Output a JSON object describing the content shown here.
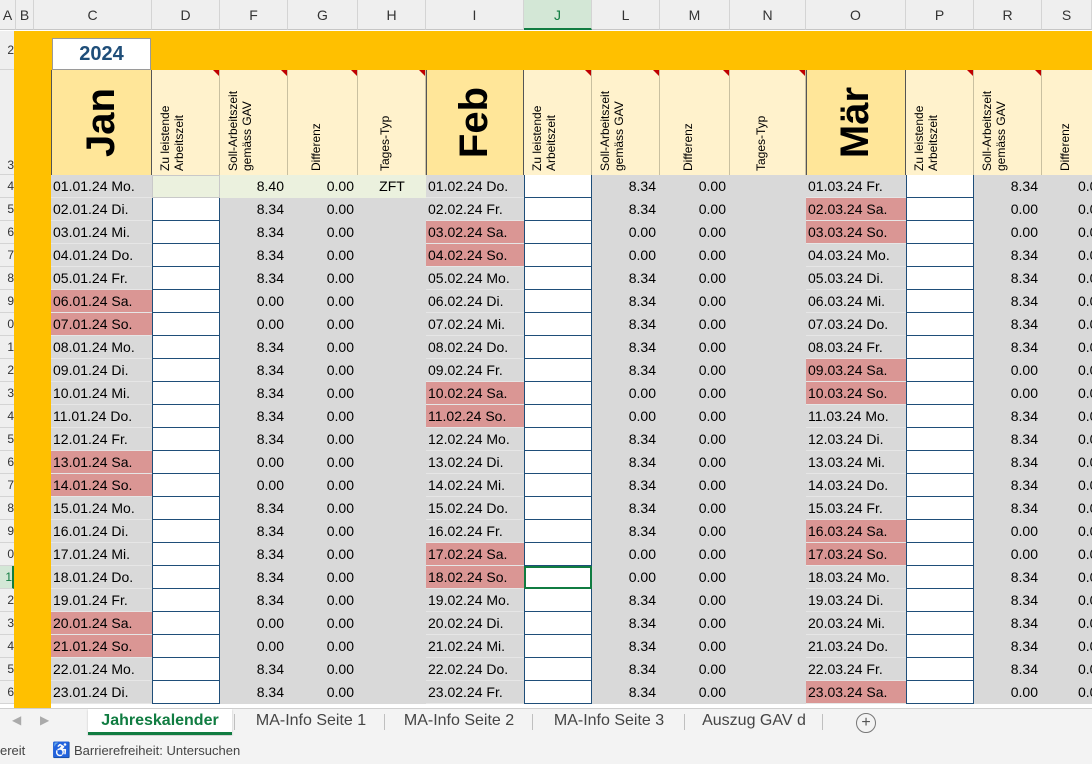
{
  "col_headers": [
    "A",
    "B",
    "C",
    "D",
    "F",
    "G",
    "H",
    "I",
    "J",
    "L",
    "M",
    "N",
    "O",
    "P",
    "R",
    "S"
  ],
  "row_numbers": [
    "2",
    "3",
    "4",
    "5",
    "6",
    "7",
    "8",
    "9",
    "0",
    "1",
    "2",
    "3",
    "4",
    "5",
    "6",
    "7",
    "8",
    "9",
    "0",
    "1",
    "2",
    "3",
    "4",
    "5",
    "6"
  ],
  "year": "2024",
  "months": [
    {
      "name": "Jan",
      "cols": [
        "Zu leistende\nArbeitszeit",
        "Soll-Arbeitszeit\ngemäss GAV",
        "Differenz",
        "Tages-Typ"
      ]
    },
    {
      "name": "Feb",
      "cols": [
        "Zu leistende\nArbeitszeit",
        "Soll-Arbeitszeit\ngemäss GAV",
        "Differenz",
        "Tages-Typ"
      ]
    },
    {
      "name": "Mär",
      "cols": [
        "Zu leistende\nArbeitszeit",
        "Soll-Arbeitszeit\ngemäss GAV",
        "Differenz"
      ]
    }
  ],
  "jan_rows": [
    {
      "d": "01.01.24 Mo.",
      "soll": "8.40",
      "diff": "0.00",
      "typ": "ZFT",
      "we": false
    },
    {
      "d": "02.01.24 Di.",
      "soll": "8.34",
      "diff": "0.00",
      "typ": "",
      "we": false
    },
    {
      "d": "03.01.24 Mi.",
      "soll": "8.34",
      "diff": "0.00",
      "typ": "",
      "we": false
    },
    {
      "d": "04.01.24 Do.",
      "soll": "8.34",
      "diff": "0.00",
      "typ": "",
      "we": false
    },
    {
      "d": "05.01.24 Fr.",
      "soll": "8.34",
      "diff": "0.00",
      "typ": "",
      "we": false
    },
    {
      "d": "06.01.24 Sa.",
      "soll": "0.00",
      "diff": "0.00",
      "typ": "",
      "we": true
    },
    {
      "d": "07.01.24 So.",
      "soll": "0.00",
      "diff": "0.00",
      "typ": "",
      "we": true
    },
    {
      "d": "08.01.24 Mo.",
      "soll": "8.34",
      "diff": "0.00",
      "typ": "",
      "we": false
    },
    {
      "d": "09.01.24 Di.",
      "soll": "8.34",
      "diff": "0.00",
      "typ": "",
      "we": false
    },
    {
      "d": "10.01.24 Mi.",
      "soll": "8.34",
      "diff": "0.00",
      "typ": "",
      "we": false
    },
    {
      "d": "11.01.24 Do.",
      "soll": "8.34",
      "diff": "0.00",
      "typ": "",
      "we": false
    },
    {
      "d": "12.01.24 Fr.",
      "soll": "8.34",
      "diff": "0.00",
      "typ": "",
      "we": false
    },
    {
      "d": "13.01.24 Sa.",
      "soll": "0.00",
      "diff": "0.00",
      "typ": "",
      "we": true
    },
    {
      "d": "14.01.24 So.",
      "soll": "0.00",
      "diff": "0.00",
      "typ": "",
      "we": true
    },
    {
      "d": "15.01.24 Mo.",
      "soll": "8.34",
      "diff": "0.00",
      "typ": "",
      "we": false
    },
    {
      "d": "16.01.24 Di.",
      "soll": "8.34",
      "diff": "0.00",
      "typ": "",
      "we": false
    },
    {
      "d": "17.01.24 Mi.",
      "soll": "8.34",
      "diff": "0.00",
      "typ": "",
      "we": false
    },
    {
      "d": "18.01.24 Do.",
      "soll": "8.34",
      "diff": "0.00",
      "typ": "",
      "we": false
    },
    {
      "d": "19.01.24 Fr.",
      "soll": "8.34",
      "diff": "0.00",
      "typ": "",
      "we": false
    },
    {
      "d": "20.01.24 Sa.",
      "soll": "0.00",
      "diff": "0.00",
      "typ": "",
      "we": true
    },
    {
      "d": "21.01.24 So.",
      "soll": "0.00",
      "diff": "0.00",
      "typ": "",
      "we": true
    },
    {
      "d": "22.01.24 Mo.",
      "soll": "8.34",
      "diff": "0.00",
      "typ": "",
      "we": false
    },
    {
      "d": "23.01.24 Di.",
      "soll": "8.34",
      "diff": "0.00",
      "typ": "",
      "we": false
    }
  ],
  "feb_rows": [
    {
      "d": "01.02.24 Do.",
      "soll": "8.34",
      "diff": "0.00",
      "we": false
    },
    {
      "d": "02.02.24 Fr.",
      "soll": "8.34",
      "diff": "0.00",
      "we": false
    },
    {
      "d": "03.02.24 Sa.",
      "soll": "0.00",
      "diff": "0.00",
      "we": true
    },
    {
      "d": "04.02.24 So.",
      "soll": "0.00",
      "diff": "0.00",
      "we": true
    },
    {
      "d": "05.02.24 Mo.",
      "soll": "8.34",
      "diff": "0.00",
      "we": false
    },
    {
      "d": "06.02.24 Di.",
      "soll": "8.34",
      "diff": "0.00",
      "we": false
    },
    {
      "d": "07.02.24 Mi.",
      "soll": "8.34",
      "diff": "0.00",
      "we": false
    },
    {
      "d": "08.02.24 Do.",
      "soll": "8.34",
      "diff": "0.00",
      "we": false
    },
    {
      "d": "09.02.24 Fr.",
      "soll": "8.34",
      "diff": "0.00",
      "we": false
    },
    {
      "d": "10.02.24 Sa.",
      "soll": "0.00",
      "diff": "0.00",
      "we": true
    },
    {
      "d": "11.02.24 So.",
      "soll": "0.00",
      "diff": "0.00",
      "we": true
    },
    {
      "d": "12.02.24 Mo.",
      "soll": "8.34",
      "diff": "0.00",
      "we": false
    },
    {
      "d": "13.02.24 Di.",
      "soll": "8.34",
      "diff": "0.00",
      "we": false
    },
    {
      "d": "14.02.24 Mi.",
      "soll": "8.34",
      "diff": "0.00",
      "we": false
    },
    {
      "d": "15.02.24 Do.",
      "soll": "8.34",
      "diff": "0.00",
      "we": false
    },
    {
      "d": "16.02.24 Fr.",
      "soll": "8.34",
      "diff": "0.00",
      "we": false
    },
    {
      "d": "17.02.24 Sa.",
      "soll": "0.00",
      "diff": "0.00",
      "we": true
    },
    {
      "d": "18.02.24 So.",
      "soll": "0.00",
      "diff": "0.00",
      "we": true
    },
    {
      "d": "19.02.24 Mo.",
      "soll": "8.34",
      "diff": "0.00",
      "we": false
    },
    {
      "d": "20.02.24 Di.",
      "soll": "8.34",
      "diff": "0.00",
      "we": false
    },
    {
      "d": "21.02.24 Mi.",
      "soll": "8.34",
      "diff": "0.00",
      "we": false
    },
    {
      "d": "22.02.24 Do.",
      "soll": "8.34",
      "diff": "0.00",
      "we": false
    },
    {
      "d": "23.02.24 Fr.",
      "soll": "8.34",
      "diff": "0.00",
      "we": false
    }
  ],
  "mar_rows": [
    {
      "d": "01.03.24 Fr.",
      "soll": "8.34",
      "diff": "0.0",
      "we": false
    },
    {
      "d": "02.03.24 Sa.",
      "soll": "0.00",
      "diff": "0.0",
      "we": true
    },
    {
      "d": "03.03.24 So.",
      "soll": "0.00",
      "diff": "0.0",
      "we": true
    },
    {
      "d": "04.03.24 Mo.",
      "soll": "8.34",
      "diff": "0.0",
      "we": false
    },
    {
      "d": "05.03.24 Di.",
      "soll": "8.34",
      "diff": "0.0",
      "we": false
    },
    {
      "d": "06.03.24 Mi.",
      "soll": "8.34",
      "diff": "0.0",
      "we": false
    },
    {
      "d": "07.03.24 Do.",
      "soll": "8.34",
      "diff": "0.0",
      "we": false
    },
    {
      "d": "08.03.24 Fr.",
      "soll": "8.34",
      "diff": "0.0",
      "we": false
    },
    {
      "d": "09.03.24 Sa.",
      "soll": "0.00",
      "diff": "0.0",
      "we": true
    },
    {
      "d": "10.03.24 So.",
      "soll": "0.00",
      "diff": "0.0",
      "we": true
    },
    {
      "d": "11.03.24 Mo.",
      "soll": "8.34",
      "diff": "0.0",
      "we": false
    },
    {
      "d": "12.03.24 Di.",
      "soll": "8.34",
      "diff": "0.0",
      "we": false
    },
    {
      "d": "13.03.24 Mi.",
      "soll": "8.34",
      "diff": "0.0",
      "we": false
    },
    {
      "d": "14.03.24 Do.",
      "soll": "8.34",
      "diff": "0.0",
      "we": false
    },
    {
      "d": "15.03.24 Fr.",
      "soll": "8.34",
      "diff": "0.0",
      "we": false
    },
    {
      "d": "16.03.24 Sa.",
      "soll": "0.00",
      "diff": "0.0",
      "we": true
    },
    {
      "d": "17.03.24 So.",
      "soll": "0.00",
      "diff": "0.0",
      "we": true
    },
    {
      "d": "18.03.24 Mo.",
      "soll": "8.34",
      "diff": "0.0",
      "we": false
    },
    {
      "d": "19.03.24 Di.",
      "soll": "8.34",
      "diff": "0.0",
      "we": false
    },
    {
      "d": "20.03.24 Mi.",
      "soll": "8.34",
      "diff": "0.0",
      "we": false
    },
    {
      "d": "21.03.24 Do.",
      "soll": "8.34",
      "diff": "0.0",
      "we": false
    },
    {
      "d": "22.03.24 Fr.",
      "soll": "8.34",
      "diff": "0.0",
      "we": false
    },
    {
      "d": "23.03.24 Sa.",
      "soll": "0.00",
      "diff": "0.0",
      "we": true
    }
  ],
  "selected_column": "J",
  "selected_row_label": "1",
  "sheet_tabs": [
    "Jahreskalender",
    "MA-Info Seite 1",
    "MA-Info Seite 2",
    "MA-Info Seite 3",
    "Auszug GAV d"
  ],
  "active_tab": "Jahreskalender",
  "status": {
    "ready": "ereit",
    "accessibility": "Barrierefreiheit: Untersuchen"
  },
  "colors": {
    "accent": "#107c41",
    "orange_band": "#ffc000",
    "month_header": "#ffe699",
    "weekend": "#da9694",
    "year_text": "#1f4e79"
  }
}
